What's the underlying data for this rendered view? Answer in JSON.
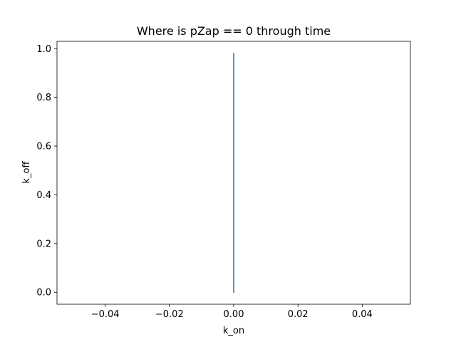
{
  "chart_data": {
    "type": "line",
    "title": "Where is pZap == 0 through time",
    "xlabel": "k_on",
    "ylabel": "k_off",
    "xlim": [
      -0.055,
      0.055
    ],
    "ylim": [
      -0.049,
      1.03
    ],
    "x_ticks": [
      -0.04,
      -0.02,
      0.0,
      0.02,
      0.04
    ],
    "x_tick_labels": [
      "−0.04",
      "−0.02",
      "0.00",
      "0.02",
      "0.04"
    ],
    "y_ticks": [
      0.0,
      0.2,
      0.4,
      0.6,
      0.8,
      1.0
    ],
    "y_tick_labels": [
      "0.0",
      "0.2",
      "0.4",
      "0.6",
      "0.8",
      "1.0"
    ],
    "grid": false,
    "series": [
      {
        "color": "#1f77b4",
        "x": [
          0.0,
          0.0
        ],
        "y": [
          0.0,
          0.98
        ]
      }
    ]
  }
}
